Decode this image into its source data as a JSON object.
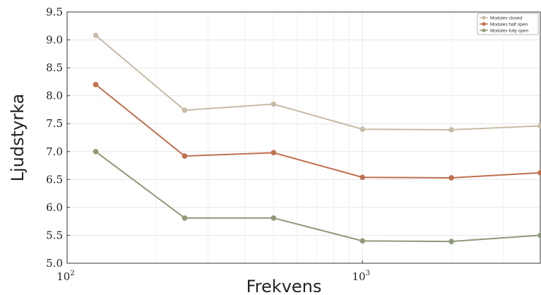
{
  "chart_data": {
    "type": "line",
    "xlabel": "Frekvens",
    "ylabel": "Ljudstyrka",
    "xscale": "log",
    "xlim": [
      100,
      4000
    ],
    "ylim": [
      5.0,
      9.5
    ],
    "yticks": [
      "5.0",
      "5.5",
      "6.0",
      "6.5",
      "7.0",
      "7.5",
      "8.0",
      "8.5",
      "9.0",
      "9.5"
    ],
    "xticks": [
      {
        "value": 100,
        "base": "10",
        "exp": "2"
      },
      {
        "value": 1000,
        "base": "10",
        "exp": "3"
      }
    ],
    "grid": true,
    "legend_position": "top-right",
    "x": [
      125,
      250,
      500,
      1000,
      2000,
      4000
    ],
    "series": [
      {
        "name": "Modules closed",
        "color": "#c8bba7",
        "values": [
          9.08,
          7.74,
          7.85,
          7.4,
          7.39,
          7.46
        ]
      },
      {
        "name": "Modules half open",
        "color": "#c0704f",
        "values": [
          8.2,
          6.92,
          6.98,
          6.54,
          6.53,
          6.62
        ]
      },
      {
        "name": "Modules fully open",
        "color": "#8e9a78",
        "values": [
          7.0,
          5.81,
          5.81,
          5.4,
          5.39,
          5.5
        ]
      }
    ]
  }
}
